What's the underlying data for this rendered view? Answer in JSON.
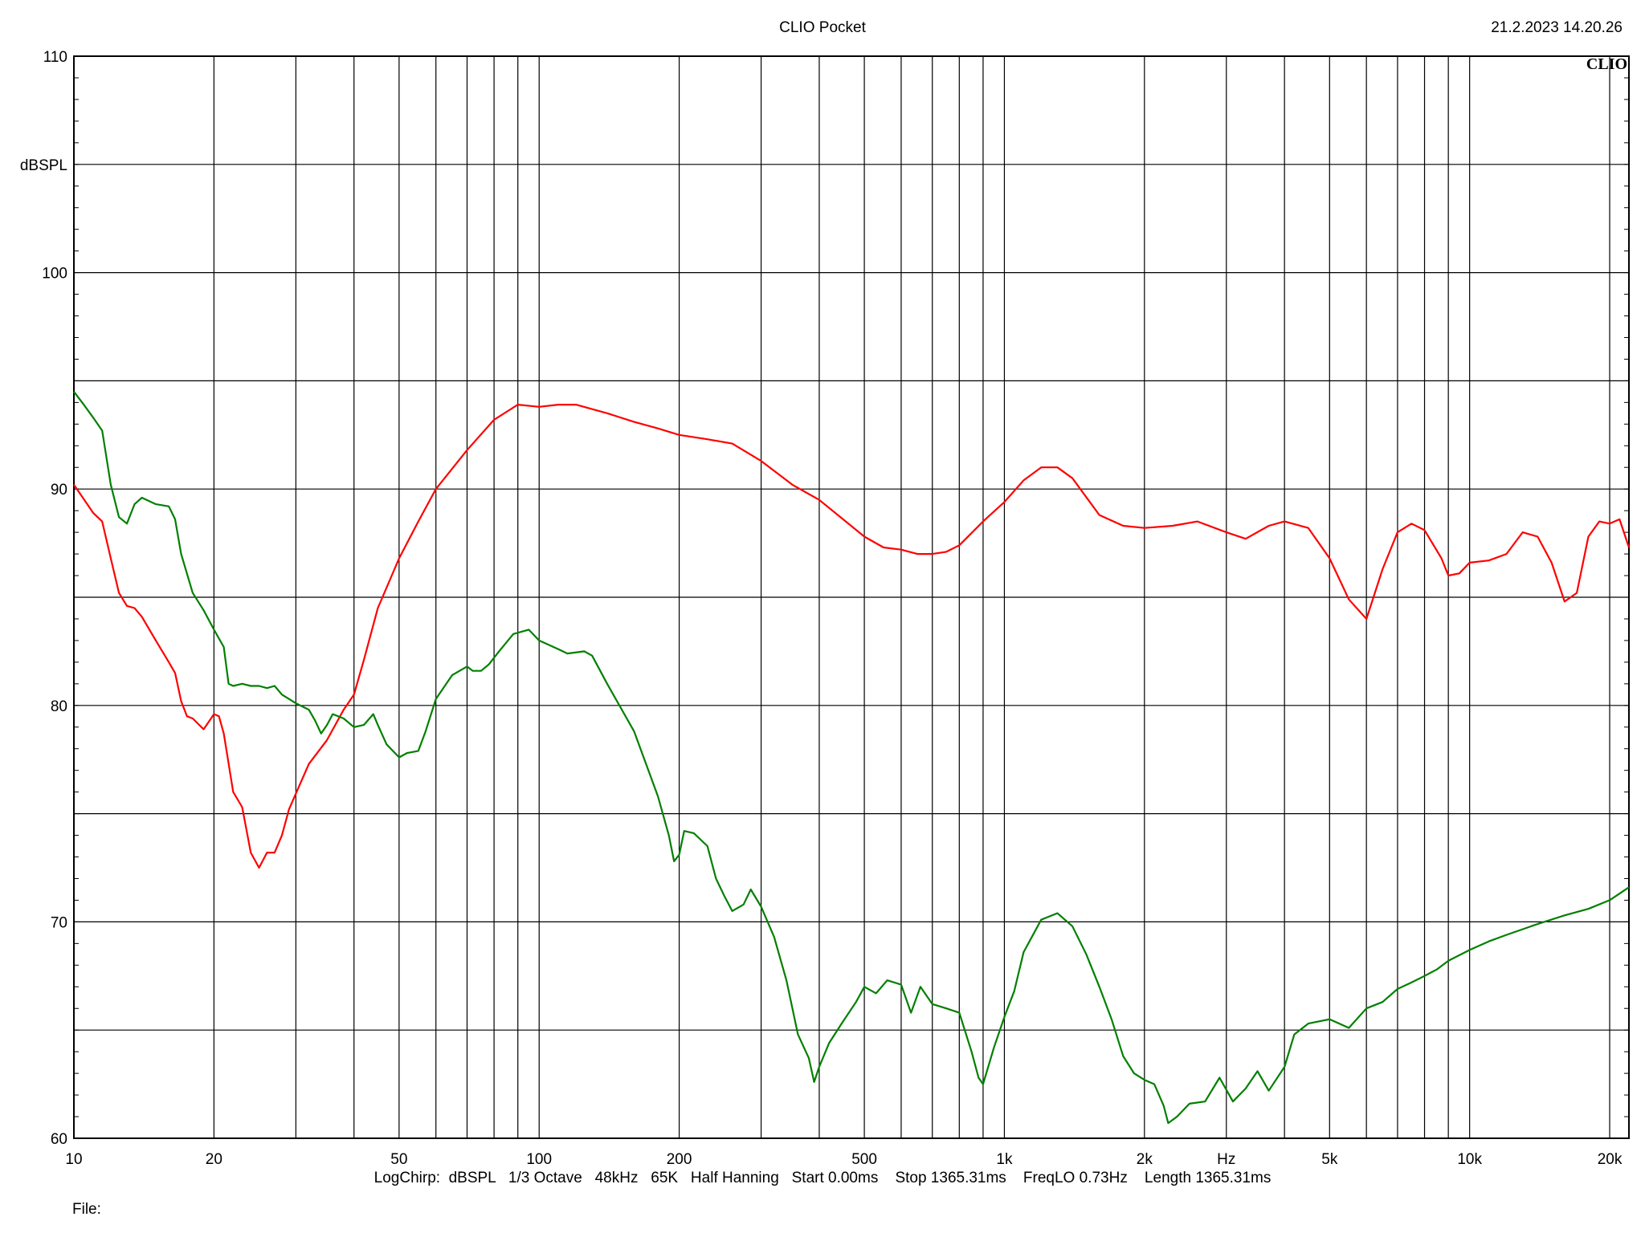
{
  "header": {
    "title": "CLIO Pocket",
    "timestamp": "21.2.2023 14.20.26",
    "logo": "CLIO"
  },
  "footer": {
    "settings": "LogChirp:  dBSPL   1/3 Octave   48kHz   65K   Half Hanning   Start 0.00ms    Stop 1365.31ms    FreqLO 0.73Hz    Length 1365.31ms",
    "file_label": "File:"
  },
  "chart_data": {
    "type": "line",
    "title": "CLIO Pocket",
    "xlabel": "Hz",
    "ylabel": "dBSPL",
    "x_scale": "log",
    "xlim": [
      10,
      22000
    ],
    "ylim": [
      60,
      110
    ],
    "grid": true,
    "x_tick_labels": [
      {
        "value": 10,
        "label": "10"
      },
      {
        "value": 20,
        "label": "20"
      },
      {
        "value": 50,
        "label": "50"
      },
      {
        "value": 100,
        "label": "100"
      },
      {
        "value": 200,
        "label": "200"
      },
      {
        "value": 500,
        "label": "500"
      },
      {
        "value": 1000,
        "label": "1k"
      },
      {
        "value": 2000,
        "label": "2k"
      },
      {
        "value": 5000,
        "label": "5k"
      },
      {
        "value": 10000,
        "label": "10k"
      },
      {
        "value": 20000,
        "label": "20k"
      }
    ],
    "y_tick_labels": [
      {
        "value": 60,
        "label": "60"
      },
      {
        "value": 70,
        "label": "70"
      },
      {
        "value": 80,
        "label": "80"
      },
      {
        "value": 90,
        "label": "90"
      },
      {
        "value": 100,
        "label": "100"
      },
      {
        "value": 110,
        "label": "110"
      }
    ],
    "series": [
      {
        "color": "#ff0000",
        "points": [
          [
            10,
            90.2
          ],
          [
            11,
            88.9
          ],
          [
            11.5,
            88.5
          ],
          [
            12,
            86.8
          ],
          [
            12.5,
            85.2
          ],
          [
            13,
            84.6
          ],
          [
            13.5,
            84.5
          ],
          [
            14,
            84.1
          ],
          [
            15,
            83.0
          ],
          [
            16,
            82.0
          ],
          [
            16.5,
            81.5
          ],
          [
            17,
            80.2
          ],
          [
            17.5,
            79.5
          ],
          [
            18,
            79.4
          ],
          [
            19,
            78.9
          ],
          [
            20,
            79.6
          ],
          [
            20.5,
            79.5
          ],
          [
            21,
            78.7
          ],
          [
            22,
            76.0
          ],
          [
            23,
            75.3
          ],
          [
            24,
            73.2
          ],
          [
            25,
            72.5
          ],
          [
            26,
            73.2
          ],
          [
            27,
            73.2
          ],
          [
            28,
            74.0
          ],
          [
            29,
            75.2
          ],
          [
            32,
            77.3
          ],
          [
            35,
            78.4
          ],
          [
            38,
            79.8
          ],
          [
            40,
            80.5
          ],
          [
            42,
            82.1
          ],
          [
            45,
            84.5
          ],
          [
            50,
            86.8
          ],
          [
            55,
            88.5
          ],
          [
            60,
            90.0
          ],
          [
            70,
            91.8
          ],
          [
            80,
            93.2
          ],
          [
            90,
            93.9
          ],
          [
            100,
            93.8
          ],
          [
            110,
            93.9
          ],
          [
            120,
            93.9
          ],
          [
            140,
            93.5
          ],
          [
            160,
            93.1
          ],
          [
            180,
            92.8
          ],
          [
            200,
            92.5
          ],
          [
            230,
            92.3
          ],
          [
            260,
            92.1
          ],
          [
            300,
            91.3
          ],
          [
            350,
            90.2
          ],
          [
            400,
            89.5
          ],
          [
            450,
            88.6
          ],
          [
            500,
            87.8
          ],
          [
            550,
            87.3
          ],
          [
            600,
            87.2
          ],
          [
            650,
            87.0
          ],
          [
            700,
            87.0
          ],
          [
            750,
            87.1
          ],
          [
            800,
            87.4
          ],
          [
            900,
            88.5
          ],
          [
            1000,
            89.4
          ],
          [
            1100,
            90.4
          ],
          [
            1200,
            91.0
          ],
          [
            1300,
            91.0
          ],
          [
            1400,
            90.5
          ],
          [
            1600,
            88.8
          ],
          [
            1800,
            88.3
          ],
          [
            2000,
            88.2
          ],
          [
            2300,
            88.3
          ],
          [
            2600,
            88.5
          ],
          [
            3000,
            88.0
          ],
          [
            3300,
            87.7
          ],
          [
            3700,
            88.3
          ],
          [
            4000,
            88.5
          ],
          [
            4500,
            88.2
          ],
          [
            5000,
            86.8
          ],
          [
            5500,
            84.9
          ],
          [
            6000,
            84.0
          ],
          [
            6500,
            86.3
          ],
          [
            7000,
            88.0
          ],
          [
            7500,
            88.4
          ],
          [
            8000,
            88.1
          ],
          [
            8700,
            86.8
          ],
          [
            9000,
            86.0
          ],
          [
            9500,
            86.1
          ],
          [
            10000,
            86.6
          ],
          [
            11000,
            86.7
          ],
          [
            12000,
            87.0
          ],
          [
            13000,
            88.0
          ],
          [
            14000,
            87.8
          ],
          [
            15000,
            86.6
          ],
          [
            16000,
            84.8
          ],
          [
            17000,
            85.2
          ],
          [
            18000,
            87.8
          ],
          [
            19000,
            88.5
          ],
          [
            20000,
            88.4
          ],
          [
            21000,
            88.6
          ],
          [
            22000,
            87.3
          ]
        ]
      },
      {
        "color": "#008000",
        "points": [
          [
            10,
            94.5
          ],
          [
            10.5,
            93.9
          ],
          [
            11,
            93.3
          ],
          [
            11.5,
            92.7
          ],
          [
            12,
            90.2
          ],
          [
            12.5,
            88.7
          ],
          [
            13,
            88.4
          ],
          [
            13.5,
            89.3
          ],
          [
            14,
            89.6
          ],
          [
            15,
            89.3
          ],
          [
            16,
            89.2
          ],
          [
            16.5,
            88.6
          ],
          [
            17,
            87.0
          ],
          [
            18,
            85.2
          ],
          [
            19,
            84.4
          ],
          [
            20,
            83.5
          ],
          [
            21,
            82.7
          ],
          [
            21.5,
            81.0
          ],
          [
            22,
            80.9
          ],
          [
            23,
            81.0
          ],
          [
            24,
            80.9
          ],
          [
            25,
            80.9
          ],
          [
            26,
            80.8
          ],
          [
            27,
            80.9
          ],
          [
            28,
            80.5
          ],
          [
            30,
            80.1
          ],
          [
            32,
            79.8
          ],
          [
            33,
            79.3
          ],
          [
            34,
            78.7
          ],
          [
            35,
            79.1
          ],
          [
            36,
            79.6
          ],
          [
            38,
            79.4
          ],
          [
            40,
            79.0
          ],
          [
            42,
            79.1
          ],
          [
            44,
            79.6
          ],
          [
            45,
            79.1
          ],
          [
            47,
            78.2
          ],
          [
            50,
            77.6
          ],
          [
            52,
            77.8
          ],
          [
            55,
            77.9
          ],
          [
            57,
            78.8
          ],
          [
            60,
            80.3
          ],
          [
            65,
            81.4
          ],
          [
            70,
            81.8
          ],
          [
            72,
            81.6
          ],
          [
            75,
            81.6
          ],
          [
            78,
            81.9
          ],
          [
            82,
            82.5
          ],
          [
            88,
            83.3
          ],
          [
            95,
            83.5
          ],
          [
            100,
            83.0
          ],
          [
            110,
            82.6
          ],
          [
            115,
            82.4
          ],
          [
            125,
            82.5
          ],
          [
            130,
            82.3
          ],
          [
            140,
            81.0
          ],
          [
            160,
            78.8
          ],
          [
            180,
            75.8
          ],
          [
            190,
            74.0
          ],
          [
            195,
            72.8
          ],
          [
            200,
            73.1
          ],
          [
            205,
            74.2
          ],
          [
            215,
            74.1
          ],
          [
            230,
            73.5
          ],
          [
            240,
            72.0
          ],
          [
            250,
            71.2
          ],
          [
            260,
            70.5
          ],
          [
            275,
            70.8
          ],
          [
            285,
            71.5
          ],
          [
            300,
            70.7
          ],
          [
            320,
            69.3
          ],
          [
            340,
            67.3
          ],
          [
            360,
            64.8
          ],
          [
            380,
            63.7
          ],
          [
            390,
            62.6
          ],
          [
            400,
            63.3
          ],
          [
            420,
            64.4
          ],
          [
            450,
            65.4
          ],
          [
            480,
            66.3
          ],
          [
            500,
            67.0
          ],
          [
            530,
            66.7
          ],
          [
            560,
            67.3
          ],
          [
            600,
            67.1
          ],
          [
            630,
            65.8
          ],
          [
            660,
            67.0
          ],
          [
            700,
            66.2
          ],
          [
            750,
            66.0
          ],
          [
            800,
            65.8
          ],
          [
            850,
            64.0
          ],
          [
            880,
            62.8
          ],
          [
            900,
            62.5
          ],
          [
            950,
            64.2
          ],
          [
            1000,
            65.6
          ],
          [
            1050,
            66.8
          ],
          [
            1100,
            68.6
          ],
          [
            1200,
            70.1
          ],
          [
            1300,
            70.4
          ],
          [
            1400,
            69.8
          ],
          [
            1500,
            68.5
          ],
          [
            1600,
            67.0
          ],
          [
            1700,
            65.5
          ],
          [
            1800,
            63.8
          ],
          [
            1900,
            63.0
          ],
          [
            2000,
            62.7
          ],
          [
            2100,
            62.5
          ],
          [
            2200,
            61.5
          ],
          [
            2250,
            60.7
          ],
          [
            2350,
            61.0
          ],
          [
            2500,
            61.6
          ],
          [
            2700,
            61.7
          ],
          [
            2900,
            62.8
          ],
          [
            3100,
            61.7
          ],
          [
            3300,
            62.3
          ],
          [
            3500,
            63.1
          ],
          [
            3700,
            62.2
          ],
          [
            4000,
            63.3
          ],
          [
            4200,
            64.8
          ],
          [
            4500,
            65.3
          ],
          [
            5000,
            65.5
          ],
          [
            5500,
            65.1
          ],
          [
            6000,
            66.0
          ],
          [
            6500,
            66.3
          ],
          [
            7000,
            66.9
          ],
          [
            7500,
            67.2
          ],
          [
            8000,
            67.5
          ],
          [
            8500,
            67.8
          ],
          [
            9000,
            68.2
          ],
          [
            10000,
            68.7
          ],
          [
            11000,
            69.1
          ],
          [
            12000,
            69.4
          ],
          [
            14000,
            69.9
          ],
          [
            16000,
            70.3
          ],
          [
            18000,
            70.6
          ],
          [
            20000,
            71.0
          ],
          [
            22000,
            71.6
          ]
        ]
      }
    ]
  }
}
